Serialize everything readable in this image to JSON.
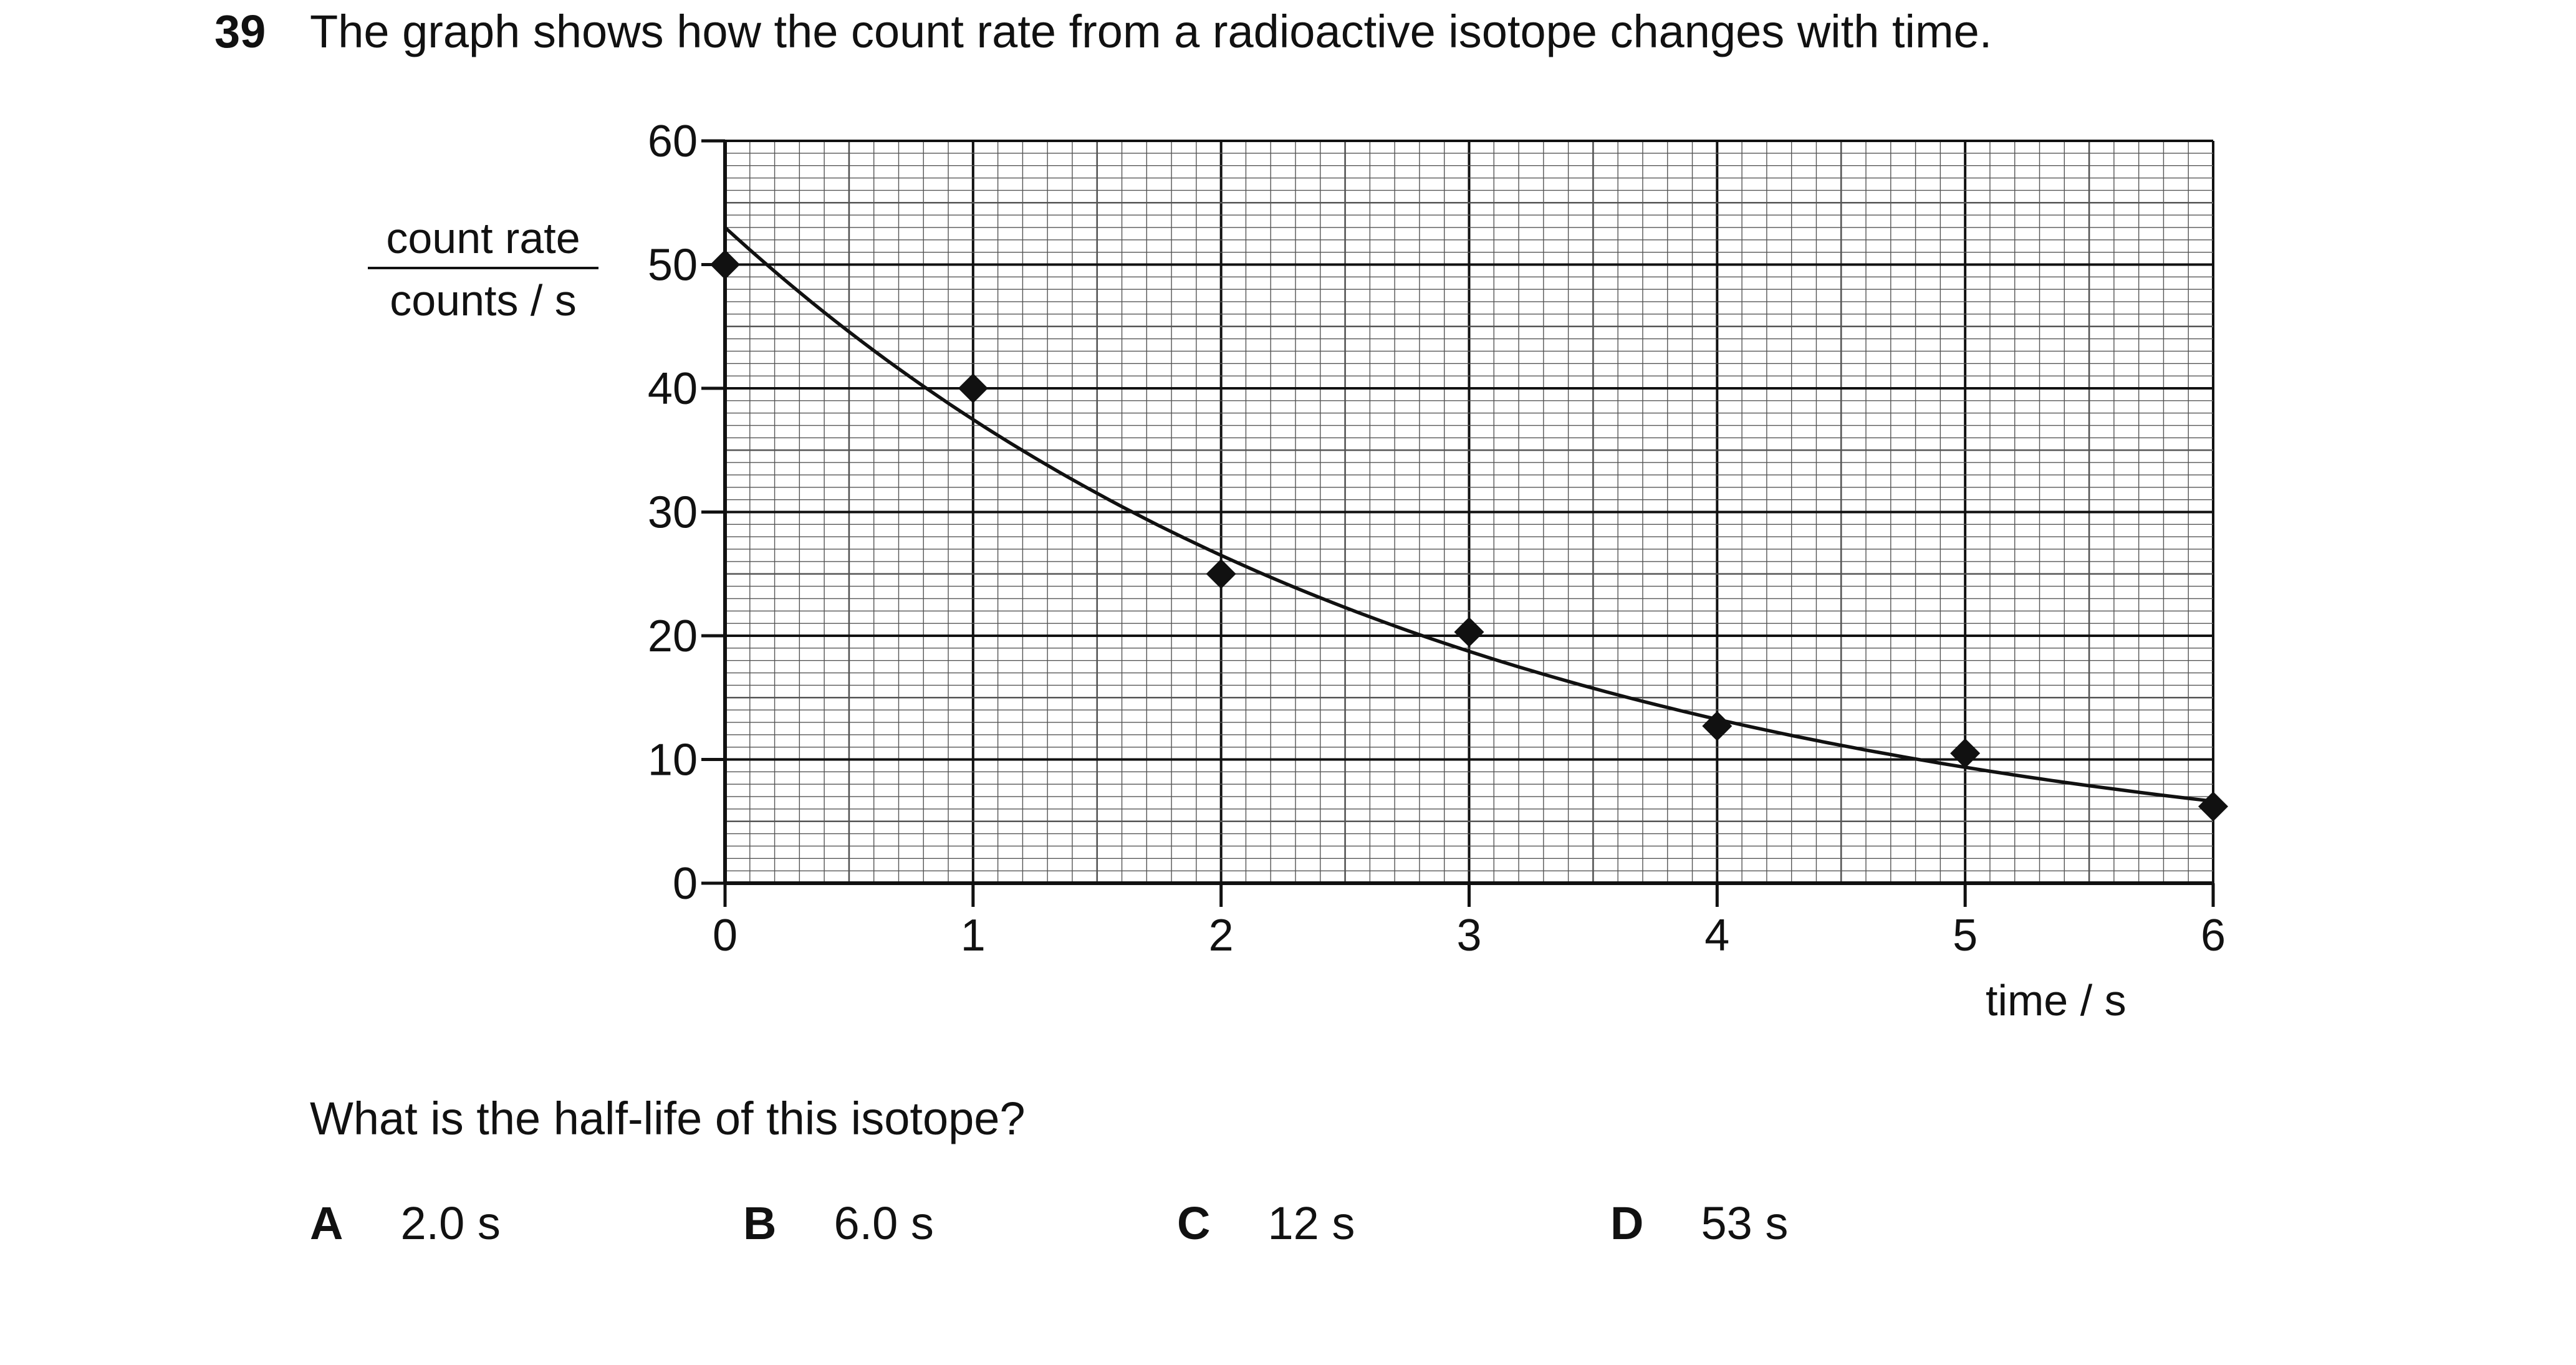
{
  "question": {
    "number": "39",
    "text": "The graph shows how the count rate from a radioactive isotope changes with time.",
    "prompt": "What is the half-life of this isotope?",
    "options": [
      {
        "letter": "A",
        "text": "2.0 s"
      },
      {
        "letter": "B",
        "text": "6.0 s"
      },
      {
        "letter": "C",
        "text": "12 s"
      },
      {
        "letter": "D",
        "text": "53 s"
      }
    ]
  },
  "chart_data": {
    "type": "scatter",
    "title": "",
    "xlabel": "time / s",
    "ylabel_numerator": "count rate",
    "ylabel_denominator": "counts / s",
    "xlim": [
      0,
      6
    ],
    "ylim": [
      0,
      60
    ],
    "x_ticks": [
      "0",
      "1",
      "2",
      "3",
      "4",
      "5",
      "6"
    ],
    "y_ticks": [
      "0",
      "10",
      "20",
      "30",
      "40",
      "50",
      "60"
    ],
    "grid": true,
    "points": [
      {
        "x": 0,
        "y": 50
      },
      {
        "x": 1,
        "y": 40
      },
      {
        "x": 2,
        "y": 25
      },
      {
        "x": 3,
        "y": 20.3
      },
      {
        "x": 4,
        "y": 12.7
      },
      {
        "x": 5,
        "y": 10.5
      },
      {
        "x": 6,
        "y": 6.2
      }
    ],
    "fit_curve": {
      "type": "exponential_decay",
      "y0": 53,
      "half_life": 2.0
    },
    "marker": "diamond",
    "colors": {
      "line": "#111111",
      "grid_minor": "#555555",
      "grid_major": "#111111"
    }
  }
}
